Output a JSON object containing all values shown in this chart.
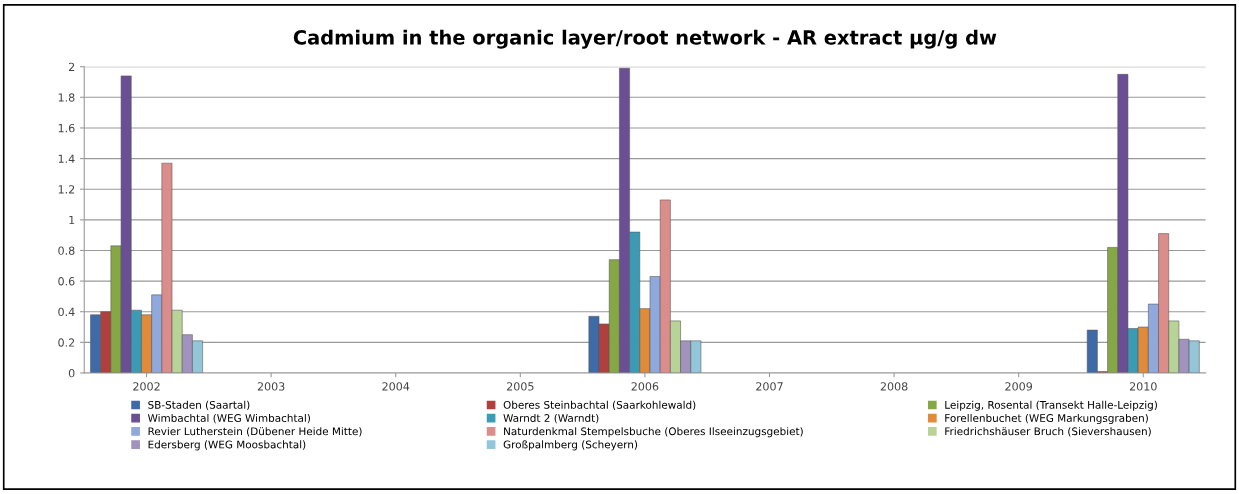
{
  "chart_data": {
    "type": "bar",
    "title": "Cadmium in the organic layer/root network - AR extract µg/g dw",
    "categories": [
      "2002",
      "2003",
      "2004",
      "2005",
      "2006",
      "2007",
      "2008",
      "2009",
      "2010"
    ],
    "ylim": [
      0,
      2
    ],
    "yticks": [
      0,
      0.2,
      0.4,
      0.6,
      0.8,
      1,
      1.2,
      1.4,
      1.6,
      1.8,
      2
    ],
    "grid": "y",
    "legend": "bottom",
    "series": [
      {
        "name": "SB-Staden (Saartal)",
        "color": "#3f6aa8",
        "values": [
          0.38,
          null,
          null,
          null,
          0.37,
          null,
          null,
          null,
          0.28
        ]
      },
      {
        "name": "Oberes Steinbachtal (Saarkohlewald)",
        "color": "#b0403d",
        "values": [
          0.4,
          null,
          null,
          null,
          0.32,
          null,
          null,
          null,
          0.01
        ]
      },
      {
        "name": "Leipzig, Rosental (Transekt Halle-Leipzig)",
        "color": "#86a844",
        "values": [
          0.83,
          null,
          null,
          null,
          0.74,
          null,
          null,
          null,
          0.82
        ]
      },
      {
        "name": "Wimbachtal (WEG Wimbachtal)",
        "color": "#6b4f94",
        "values": [
          1.94,
          null,
          null,
          null,
          1.99,
          null,
          null,
          null,
          1.95
        ]
      },
      {
        "name": "Warndt 2 (Warndt)",
        "color": "#3b9bb5",
        "values": [
          0.41,
          null,
          null,
          null,
          0.92,
          null,
          null,
          null,
          0.29
        ]
      },
      {
        "name": "Forellenbuchet (WEG Markungsgraben)",
        "color": "#e18a3a",
        "values": [
          0.38,
          null,
          null,
          null,
          0.42,
          null,
          null,
          null,
          0.3
        ]
      },
      {
        "name": "Revier Lutherstein (Dübener Heide Mitte)",
        "color": "#8fa9dc",
        "values": [
          0.51,
          null,
          null,
          null,
          0.63,
          null,
          null,
          null,
          0.45
        ]
      },
      {
        "name": "Naturdenkmal Stempelsbuche (Oberes Ilseeinzugsgebiet)",
        "color": "#db8d8b",
        "values": [
          1.37,
          null,
          null,
          null,
          1.13,
          null,
          null,
          null,
          0.91
        ]
      },
      {
        "name": "Friedrichshäuser Bruch (Sievershausen)",
        "color": "#b8d397",
        "values": [
          0.41,
          null,
          null,
          null,
          0.34,
          null,
          null,
          null,
          0.34
        ]
      },
      {
        "name": "Edersberg (WEG Moosbachtal)",
        "color": "#a193bd",
        "values": [
          0.25,
          null,
          null,
          null,
          0.21,
          null,
          null,
          null,
          0.22
        ]
      },
      {
        "name": "Großpalmberg (Scheyern)",
        "color": "#92c6d8",
        "values": [
          0.21,
          null,
          null,
          null,
          0.21,
          null,
          null,
          null,
          0.21
        ]
      }
    ]
  }
}
